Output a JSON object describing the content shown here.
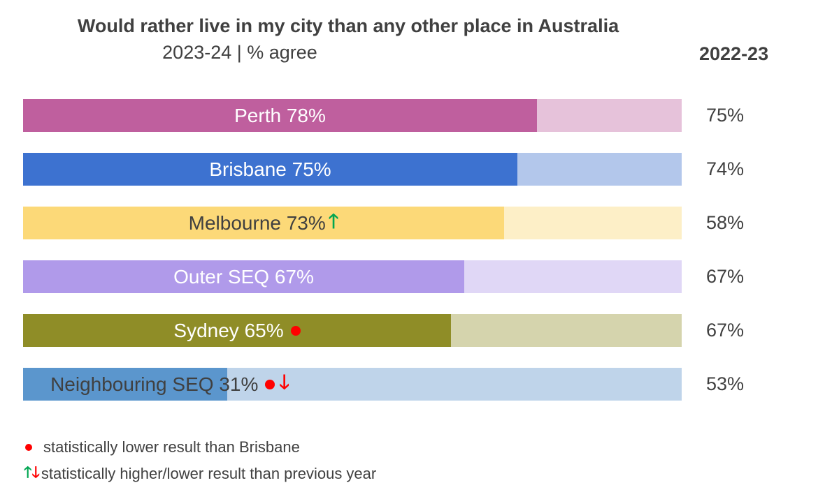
{
  "chart_data": {
    "type": "bar",
    "orientation": "horizontal",
    "title": "Would rather live in my city than any other place in Australia",
    "subtitle": "2023-24 | % agree",
    "prev_header": "2022-23",
    "xlim": [
      0,
      100
    ],
    "categories": [
      "Perth",
      "Brisbane",
      "Melbourne",
      "Outer SEQ",
      "Sydney",
      "Neighbouring SEQ"
    ],
    "bars": [
      {
        "label": "Perth 78%",
        "value": 78,
        "prev": "75%",
        "color": "#bf5f9e",
        "bg": "#e6c2da",
        "text_color": "#ffffff",
        "markers": []
      },
      {
        "label": "Brisbane 75%",
        "value": 75,
        "prev": "74%",
        "color": "#3d72d0",
        "bg": "#b3c7eb",
        "text_color": "#ffffff",
        "markers": []
      },
      {
        "label": "Melbourne 73%",
        "value": 73,
        "prev": "58%",
        "color": "#fcd978",
        "bg": "#fdefc7",
        "text_color": "#404040",
        "markers": [
          "up"
        ]
      },
      {
        "label": "Outer SEQ 67%",
        "value": 67,
        "prev": "67%",
        "color": "#b09aea",
        "bg": "#e0d7f6",
        "text_color": "#ffffff",
        "markers": []
      },
      {
        "label": "Sydney 65%",
        "value": 65,
        "prev": "67%",
        "color": "#8f8d27",
        "bg": "#d5d4ad",
        "text_color": "#ffffff",
        "markers": [
          "dot"
        ]
      },
      {
        "label": "Neighbouring SEQ 31%",
        "value": 31,
        "prev": "53%",
        "color": "#5b96cd",
        "bg": "#bfd4ea",
        "text_color": "#404040",
        "markers": [
          "dot",
          "down"
        ]
      }
    ],
    "legend": [
      {
        "symbol": "dot",
        "text": "statistically lower result than Brisbane"
      },
      {
        "symbol": "updown",
        "text": "statistically higher/lower result than previous year"
      }
    ]
  },
  "glyphs": {
    "up": "🡑",
    "down": "🡓"
  }
}
